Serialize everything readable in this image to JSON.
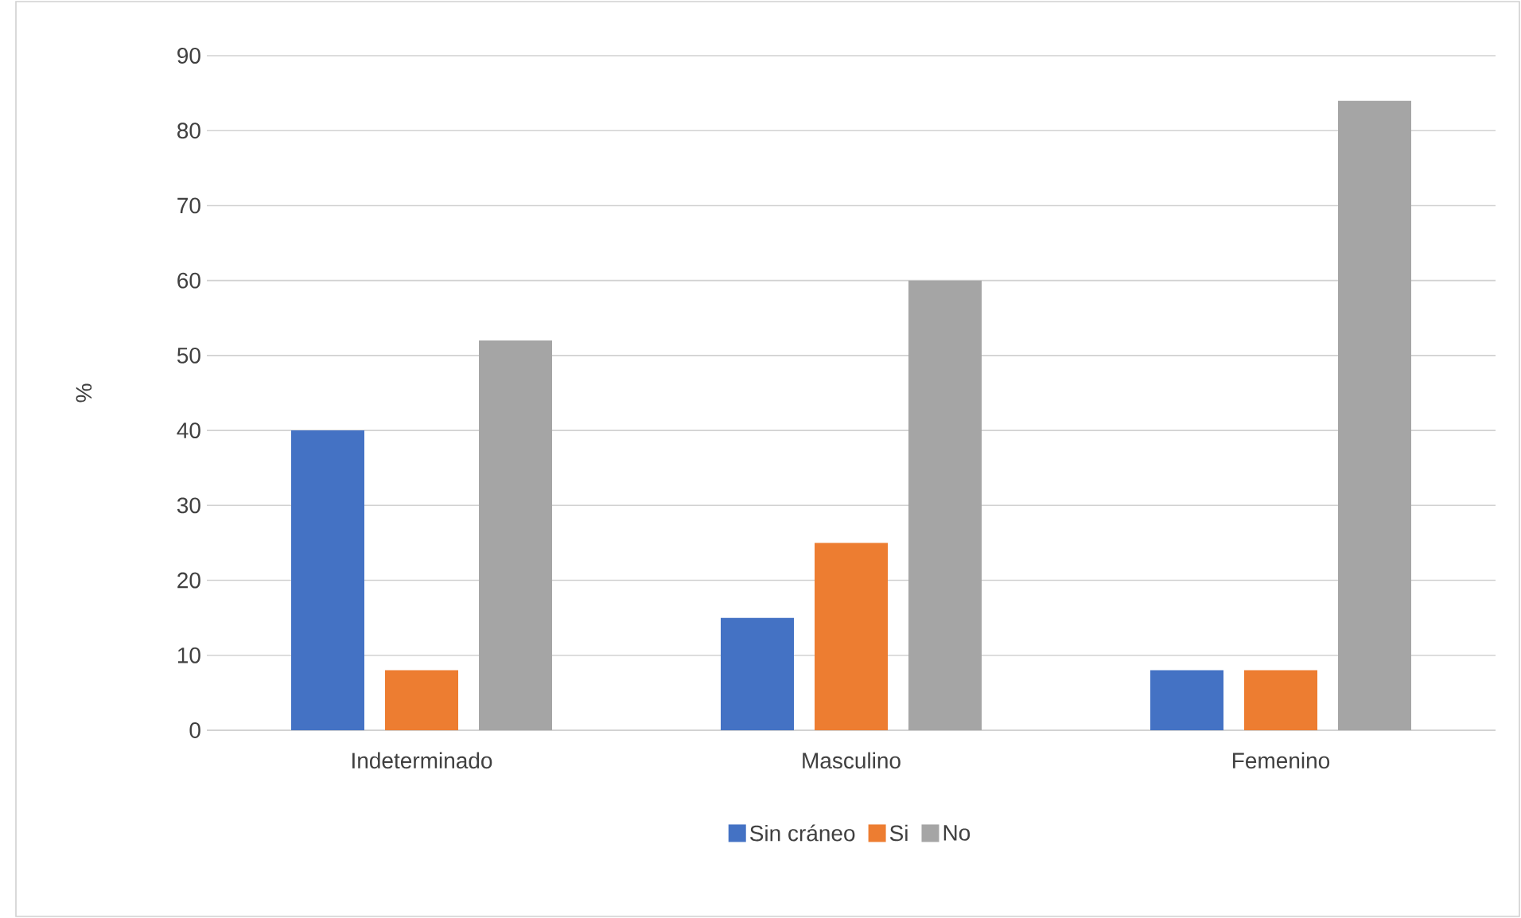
{
  "chart_data": {
    "type": "bar",
    "ylabel": "%",
    "categories": [
      "Indeterminado",
      "Masculino",
      "Femenino"
    ],
    "series": [
      {
        "name": "Sin cráneo",
        "color": "#4472c4",
        "values": [
          40,
          15,
          8
        ]
      },
      {
        "name": "Si",
        "color": "#ed7d31",
        "values": [
          8,
          25,
          8
        ]
      },
      {
        "name": "No",
        "color": "#a5a5a5",
        "values": [
          52,
          60,
          84
        ]
      }
    ],
    "ylim": [
      0,
      90
    ],
    "yticks": [
      0,
      10,
      20,
      30,
      40,
      50,
      60,
      70,
      80,
      90
    ],
    "grid": "y",
    "legend": "bottom"
  }
}
